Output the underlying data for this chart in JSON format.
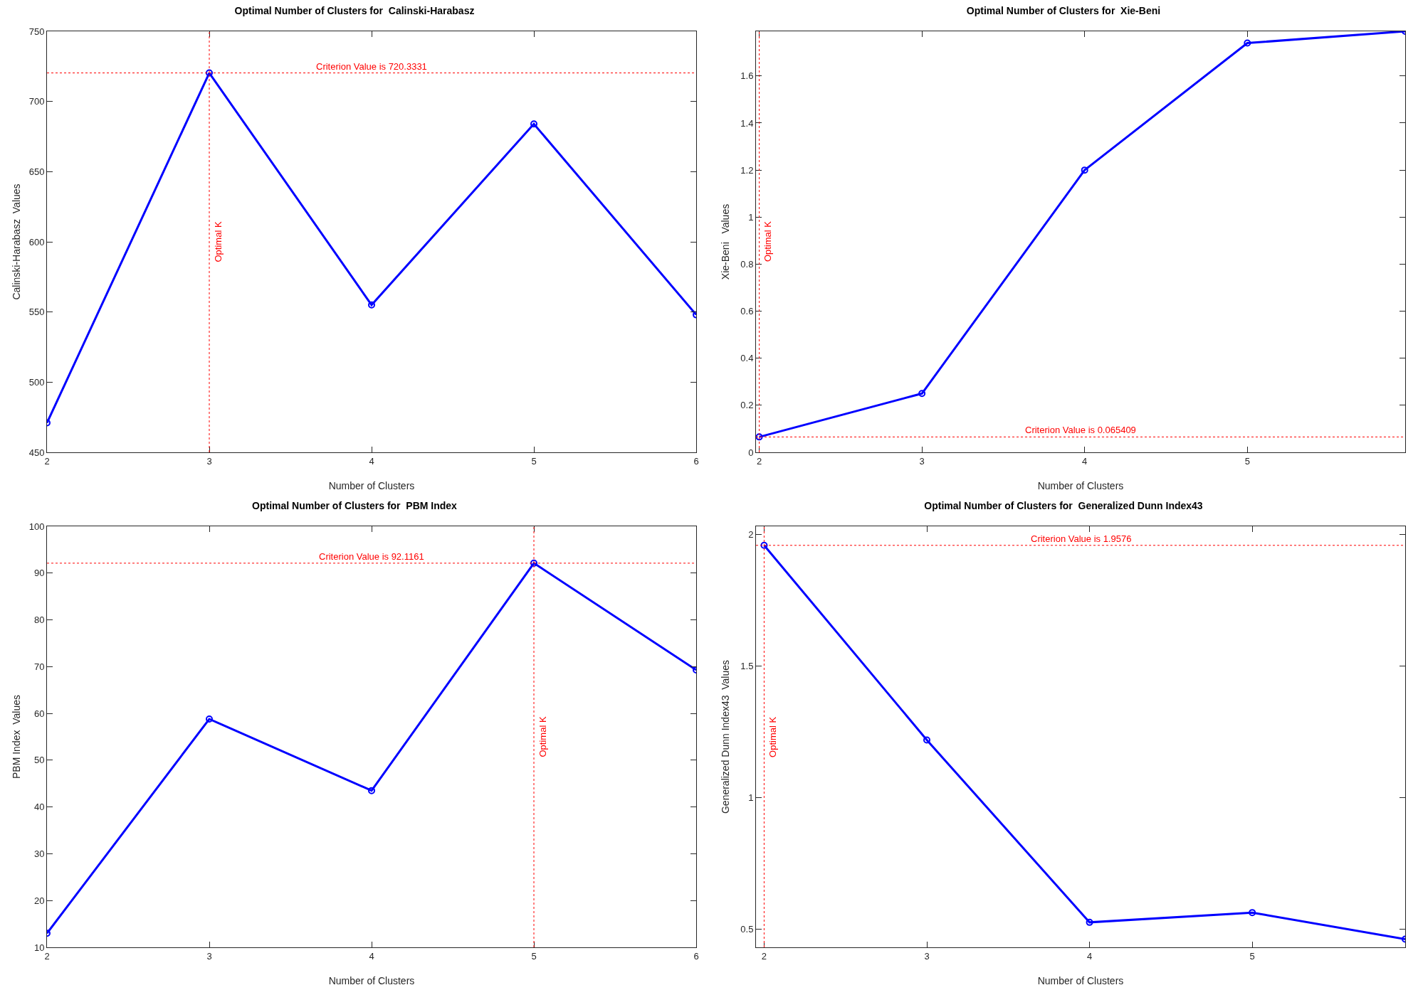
{
  "chart_data": [
    {
      "type": "line",
      "title": "Optimal Number of Clusters for  Calinski-Harabasz",
      "xlabel": "Number of Clusters",
      "ylabel": "Calinski-Harabasz  Values",
      "x": [
        2,
        3,
        4,
        5,
        6
      ],
      "series": [
        {
          "color": "#0000ff",
          "values": [
            471,
            720.3331,
            555,
            684,
            548
          ]
        }
      ],
      "xlim": [
        2,
        6
      ],
      "xticks": [
        2,
        3,
        4,
        5,
        6
      ],
      "ylim": [
        450,
        750
      ],
      "yticks": [
        450,
        500,
        550,
        600,
        650,
        700,
        750
      ],
      "marker": "circle",
      "line_style": "solid",
      "grid": false,
      "ref_lines": [
        {
          "axis": "y",
          "value": 720.3331,
          "label": "Criterion Value is 720.3331",
          "color": "#ff0000",
          "line_style": "dotted"
        },
        {
          "axis": "x",
          "value": 3,
          "label": "Optimal K",
          "color": "#ff0000",
          "line_style": "dotted"
        }
      ]
    },
    {
      "type": "line",
      "title": "Optimal Number of Clusters for  Xie-Beni",
      "xlabel": "Number of Clusters",
      "ylabel": "Xie-Beni   Values",
      "x": [
        2,
        3,
        4,
        5,
        5.97
      ],
      "series": [
        {
          "color": "#0000ff",
          "values": [
            0.065409,
            0.25,
            1.2,
            1.74,
            1.79
          ]
        }
      ],
      "xlim": [
        1.98,
        5.97
      ],
      "xticks": [
        2,
        3,
        4,
        5
      ],
      "ylim": [
        0,
        1.79
      ],
      "yticks": [
        0,
        0.2,
        0.4,
        0.6,
        0.8,
        1,
        1.2,
        1.4,
        1.6
      ],
      "marker": "circle",
      "line_style": "solid",
      "grid": false,
      "ref_lines": [
        {
          "axis": "y",
          "value": 0.065409,
          "label": "Criterion Value is 0.065409",
          "color": "#ff0000",
          "line_style": "dotted"
        },
        {
          "axis": "x",
          "value": 2,
          "label": "Optimal K",
          "color": "#ff0000",
          "line_style": "dotted"
        }
      ]
    },
    {
      "type": "line",
      "title": "Optimal Number of Clusters for  PBM Index",
      "xlabel": "Number of Clusters",
      "ylabel": "PBM Index  Values",
      "x": [
        2,
        3,
        4,
        5,
        6
      ],
      "series": [
        {
          "color": "#0000ff",
          "values": [
            13,
            58.8,
            43.5,
            92.1161,
            69.3
          ]
        }
      ],
      "xlim": [
        2,
        6
      ],
      "xticks": [
        2,
        3,
        4,
        5,
        6
      ],
      "ylim": [
        10,
        100
      ],
      "yticks": [
        10,
        20,
        30,
        40,
        50,
        60,
        70,
        80,
        90,
        100
      ],
      "marker": "circle",
      "line_style": "solid",
      "grid": false,
      "ref_lines": [
        {
          "axis": "y",
          "value": 92.1161,
          "label": "Criterion Value is 92.1161",
          "color": "#ff0000",
          "line_style": "dotted"
        },
        {
          "axis": "x",
          "value": 5,
          "label": "Optimal K",
          "color": "#ff0000",
          "line_style": "dotted"
        }
      ]
    },
    {
      "type": "line",
      "title": "Optimal Number of Clusters for  Generalized Dunn Index43",
      "xlabel": "Number of Clusters",
      "ylabel": "Generalized Dunn Index43  Values",
      "x": [
        2,
        3,
        4,
        5,
        5.94
      ],
      "series": [
        {
          "color": "#0000ff",
          "values": [
            1.9576,
            1.218,
            0.525,
            0.562,
            0.461
          ]
        }
      ],
      "xlim": [
        1.95,
        5.94
      ],
      "xticks": [
        2,
        3,
        4,
        5
      ],
      "ylim": [
        0.43,
        2.03
      ],
      "yticks": [
        0.5,
        1,
        1.5,
        2
      ],
      "marker": "circle",
      "line_style": "solid",
      "grid": false,
      "ref_lines": [
        {
          "axis": "y",
          "value": 1.9576,
          "label": "Criterion Value is 1.9576",
          "color": "#ff0000",
          "line_style": "dotted"
        },
        {
          "axis": "x",
          "value": 2,
          "label": "Optimal K",
          "color": "#ff0000",
          "line_style": "dotted"
        }
      ]
    }
  ]
}
